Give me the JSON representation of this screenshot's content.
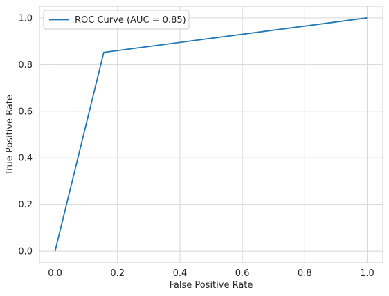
{
  "chart_data": {
    "type": "line",
    "title": "",
    "xlabel": "False Positive Rate",
    "ylabel": "True Positive Rate",
    "xlim": [
      -0.05,
      1.05
    ],
    "ylim": [
      -0.05,
      1.05
    ],
    "xticks": [
      0.0,
      0.2,
      0.4,
      0.6,
      0.8,
      1.0
    ],
    "yticks": [
      0.0,
      0.2,
      0.4,
      0.6,
      0.8,
      1.0
    ],
    "xtick_labels": [
      "0.0",
      "0.2",
      "0.4",
      "0.6",
      "0.8",
      "1.0"
    ],
    "ytick_labels": [
      "0.0",
      "0.2",
      "0.4",
      "0.6",
      "0.8",
      "1.0"
    ],
    "grid": true,
    "legend_position": "upper-left",
    "series": [
      {
        "name": "ROC Curve (AUC = 0.85)",
        "color": "#1f77b4",
        "x": [
          0.0,
          0.156,
          1.0
        ],
        "y": [
          0.0,
          0.852,
          1.0
        ]
      }
    ]
  }
}
